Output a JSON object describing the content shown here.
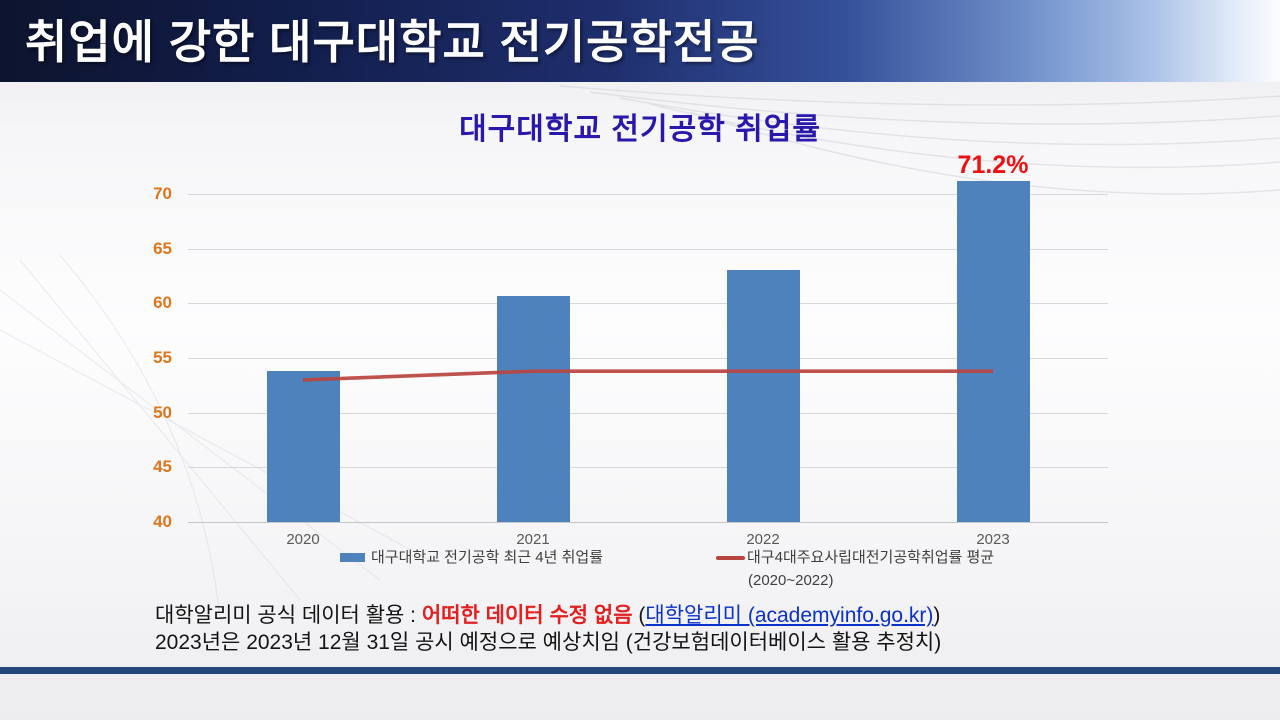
{
  "header": {
    "title": "취업에 강한 대구대학교 전기공학전공"
  },
  "chart_data": {
    "type": "bar",
    "title": "대구대학교 전기공학 취업률",
    "categories": [
      "2020",
      "2021",
      "2022",
      "2023"
    ],
    "series": [
      {
        "name": "대구대학교 전기공학 최근 4년 취업률",
        "type": "bar",
        "color": "#4e82bc",
        "values": [
          53.8,
          60.7,
          63.1,
          71.2
        ]
      },
      {
        "name": "대구4대주요사립대전기공학취업률 평균 (2020~2022)",
        "type": "line",
        "color": "#b8443f",
        "values": [
          53.0,
          53.8,
          53.8,
          53.8
        ]
      }
    ],
    "xlabel": "",
    "ylabel": "",
    "ylim": [
      40,
      72.5
    ],
    "yticks": [
      40,
      45,
      50,
      55,
      60,
      65,
      70
    ],
    "grid": true,
    "legend_position": "bottom",
    "annotations": [
      {
        "text": "71.2%",
        "category": "2023",
        "series": "대구대학교 전기공학 최근 4년 취업률",
        "color": "#ee1111"
      }
    ]
  },
  "legend": {
    "bar_label": "대구대학교 전기공학 최근 4년 취업률",
    "line_label": "대구4대주요사립대전기공학취업률 평균",
    "line_sublabel": "(2020~2022)"
  },
  "footnote": {
    "line1_prefix": "대학알리미 공식 데이터 활용 : ",
    "line1_highlight": "어떠한 데이터 수정 없음",
    "line1_mid": " (",
    "line1_link": "대학알리미 (academyinfo.go.kr)",
    "line1_suffix": ")",
    "line2": "2023년은 2023년 12월 31일 공시 예정으로 예상치임 (건강보험데이터베이스 활용 추정치)"
  },
  "colors": {
    "header_navy": "#0d142e",
    "bar_blue": "#4e82bc",
    "line_red": "#b8443f",
    "annotation_red": "#ee1111",
    "ytick_orange": "#dd761d",
    "title_blue": "#2a18ac",
    "bottom_bar_navy": "#24487b"
  }
}
